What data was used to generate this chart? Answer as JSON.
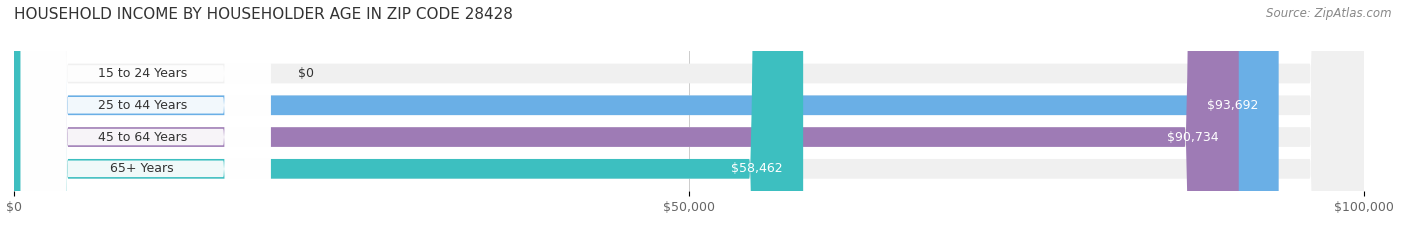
{
  "title": "HOUSEHOLD INCOME BY HOUSEHOLDER AGE IN ZIP CODE 28428",
  "source": "Source: ZipAtlas.com",
  "categories": [
    "15 to 24 Years",
    "25 to 44 Years",
    "45 to 64 Years",
    "65+ Years"
  ],
  "values": [
    0,
    93692,
    90734,
    58462
  ],
  "value_labels": [
    "$0",
    "$93,692",
    "$90,734",
    "$58,462"
  ],
  "bar_colors": [
    "#f08080",
    "#6aafe6",
    "#9e7bb5",
    "#3dbfc0"
  ],
  "bg_colors": [
    "#f0f0f0",
    "#f0f0f0",
    "#f0f0f0",
    "#f0f0f0"
  ],
  "xlim": [
    0,
    100000
  ],
  "xticks": [
    0,
    50000,
    100000
  ],
  "xtick_labels": [
    "$0",
    "$50,000",
    "$100,000"
  ],
  "title_fontsize": 11,
  "source_fontsize": 8.5,
  "label_fontsize": 9,
  "value_fontsize": 9,
  "bg_color": "#ffffff",
  "label_color_dark": "#333333",
  "label_color_light": "#ffffff"
}
